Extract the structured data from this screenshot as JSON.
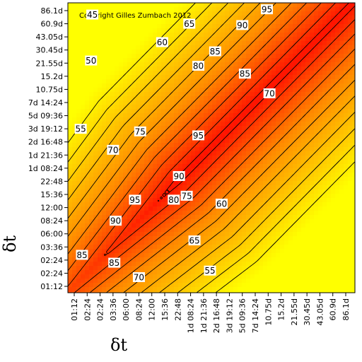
{
  "chart_data": {
    "type": "heatmap",
    "subtype": "contour",
    "title": "",
    "copyright": "Copyright Gilles Zumbach 2012",
    "xlabel": "δt",
    "ylabel": "δt",
    "ticks": [
      "01:12",
      "02:24",
      "02:24",
      "03:36",
      "06:00",
      "08:24",
      "12:00",
      "15:36",
      "22:48",
      "1d 08:24",
      "1d 21:36",
      "2d 16:48",
      "3d 19:12",
      "5d 09:36",
      "7d 14:24",
      "10.75d",
      "15.2d",
      "21.55d",
      "30.45d",
      "43.05d",
      "60.9d",
      "86.1d"
    ],
    "contour_levels": [
      45,
      50,
      55,
      60,
      65,
      70,
      75,
      80,
      85,
      90,
      95
    ],
    "colorscale": {
      "low": "#ffff00",
      "mid": "#ff8c00",
      "high": "#ff0000"
    },
    "value_range": [
      40,
      100
    ],
    "contour_labels": [
      {
        "text": "45",
        "xi": 1.4,
        "yi": 20.7
      },
      {
        "text": "50",
        "xi": 1.3,
        "yi": 17.2
      },
      {
        "text": "55",
        "xi": 0.5,
        "yi": 12.0
      },
      {
        "text": "60",
        "xi": 6.8,
        "yi": 18.6
      },
      {
        "text": "65",
        "xi": 8.9,
        "yi": 20.0
      },
      {
        "text": "85",
        "xi": 10.9,
        "yi": 17.9
      },
      {
        "text": "80",
        "xi": 9.6,
        "yi": 16.8
      },
      {
        "text": "90",
        "xi": 13.0,
        "yi": 19.9
      },
      {
        "text": "95",
        "xi": 14.9,
        "yi": 21.1
      },
      {
        "text": "85",
        "xi": 13.2,
        "yi": 16.2
      },
      {
        "text": "70",
        "xi": 15.1,
        "yi": 14.7
      },
      {
        "text": "75",
        "xi": 5.1,
        "yi": 11.8
      },
      {
        "text": "95",
        "xi": 9.6,
        "yi": 11.5
      },
      {
        "text": "70",
        "xi": 3.0,
        "yi": 10.4
      },
      {
        "text": "90",
        "xi": 8.1,
        "yi": 8.4
      },
      {
        "text": "80",
        "xi": 7.7,
        "yi": 6.6
      },
      {
        "text": "75",
        "xi": 8.7,
        "yi": 6.9
      },
      {
        "text": "60",
        "xi": 11.4,
        "yi": 6.3
      },
      {
        "text": "95",
        "xi": 4.7,
        "yi": 6.6
      },
      {
        "text": "90",
        "xi": 3.2,
        "yi": 5.0
      },
      {
        "text": "65",
        "xi": 9.3,
        "yi": 3.5
      },
      {
        "text": "85",
        "xi": 0.6,
        "yi": 2.4
      },
      {
        "text": "85",
        "xi": 3.1,
        "yi": 1.8
      },
      {
        "text": "70",
        "xi": 5.0,
        "yi": 0.7
      },
      {
        "text": "55",
        "xi": 10.5,
        "yi": 1.2
      }
    ]
  }
}
